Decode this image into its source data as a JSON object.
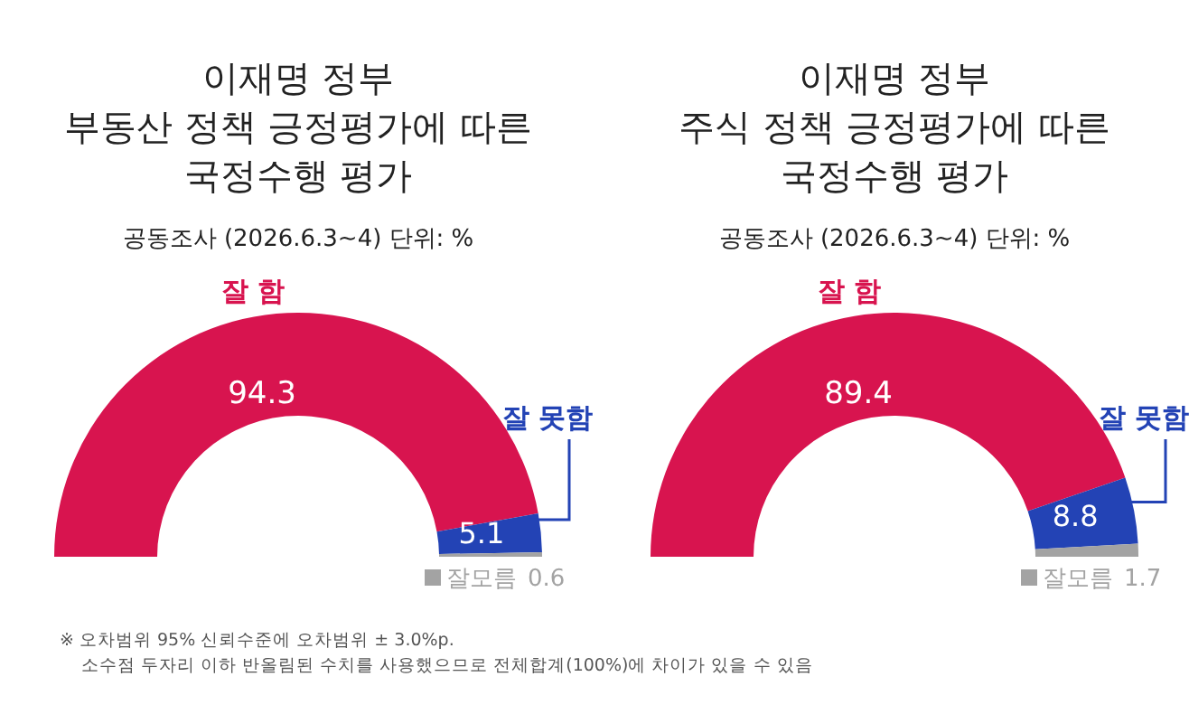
{
  "chart_data": [
    {
      "type": "donut",
      "title": "이재명 정부\n부동산 정책 긍정평가에 따른\n국정수행 평가",
      "subtitle": "공동조사 (2026.6.3~4) 단위: %",
      "categories": [
        "잘 함",
        "잘 못함",
        "잘모름"
      ],
      "values": [
        94.3,
        5.1,
        0.6
      ],
      "colors": [
        "#d8144f",
        "#2343b5",
        "#a3a3a3"
      ],
      "data_labels": true,
      "annotations": [
        "※ 오차범위 95% 신뢰수준에 오차범위 ± 3.0%p.",
        "소수점 두자리 이하 반올림된 수치를 사용했으므로 전체합계(100%)에 차이가 있을 수 있음"
      ]
    },
    {
      "type": "donut",
      "title": "이재명 정부\n주식 정책 긍정평가에 따른\n국정수행 평가",
      "subtitle": "공동조사 (2026.6.3~4) 단위: %",
      "categories": [
        "잘 함",
        "잘 못함",
        "잘모름"
      ],
      "values": [
        89.4,
        8.8,
        1.7
      ],
      "colors": [
        "#d8144f",
        "#2343b5",
        "#a3a3a3"
      ],
      "data_labels": true
    }
  ]
}
